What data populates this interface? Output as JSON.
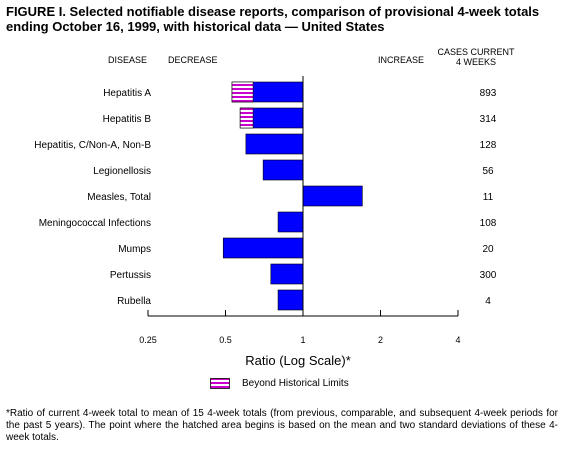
{
  "figure": {
    "title": "FIGURE I. Selected notifiable disease reports, comparison of provisional 4-week totals ending October 16, 1999, with historical data — United States",
    "headers": {
      "disease": "DISEASE",
      "decrease": "DECREASE",
      "increase": "INCREASE",
      "cases_line1": "CASES CURRENT",
      "cases_line2": "4 WEEKS"
    },
    "legend_label": "Beyond Historical Limits",
    "footnote": "*Ratio of current 4-week total to mean of 15 4-week totals (from previous, comparable, and subsequent 4-week periods for the past 5 years). The point where the hatched area begins is based on the mean and two standard deviations of these 4-week totals.",
    "colors": {
      "bar": "#0000ff",
      "hatch": "#cc00cc",
      "axis": "#000000"
    }
  },
  "chart_data": {
    "type": "bar",
    "orientation": "horizontal",
    "xlabel": "Ratio (Log Scale)*",
    "x_scale": "log",
    "xlim": [
      0.25,
      4
    ],
    "xticks": [
      0.25,
      0.5,
      1,
      2,
      4
    ],
    "xtick_labels": [
      "0.25",
      "0.5",
      "1",
      "2",
      "4"
    ],
    "baseline": 1,
    "categories": [
      "Hepatitis A",
      "Hepatitis B",
      "Hepatitis, C/Non-A, Non-B",
      "Legionellosis",
      "Measles, Total",
      "Meningococcal Infections",
      "Mumps",
      "Pertussis",
      "Rubella"
    ],
    "values": [
      0.53,
      0.57,
      0.6,
      0.7,
      1.7,
      0.8,
      0.49,
      0.75,
      0.8
    ],
    "beyond_limits_from": [
      0.64,
      0.64,
      null,
      null,
      null,
      null,
      null,
      null,
      null
    ],
    "cases_current_4_weeks": [
      "893",
      "314",
      "128",
      "56",
      "11",
      "108",
      "20",
      "300",
      "4"
    ]
  }
}
